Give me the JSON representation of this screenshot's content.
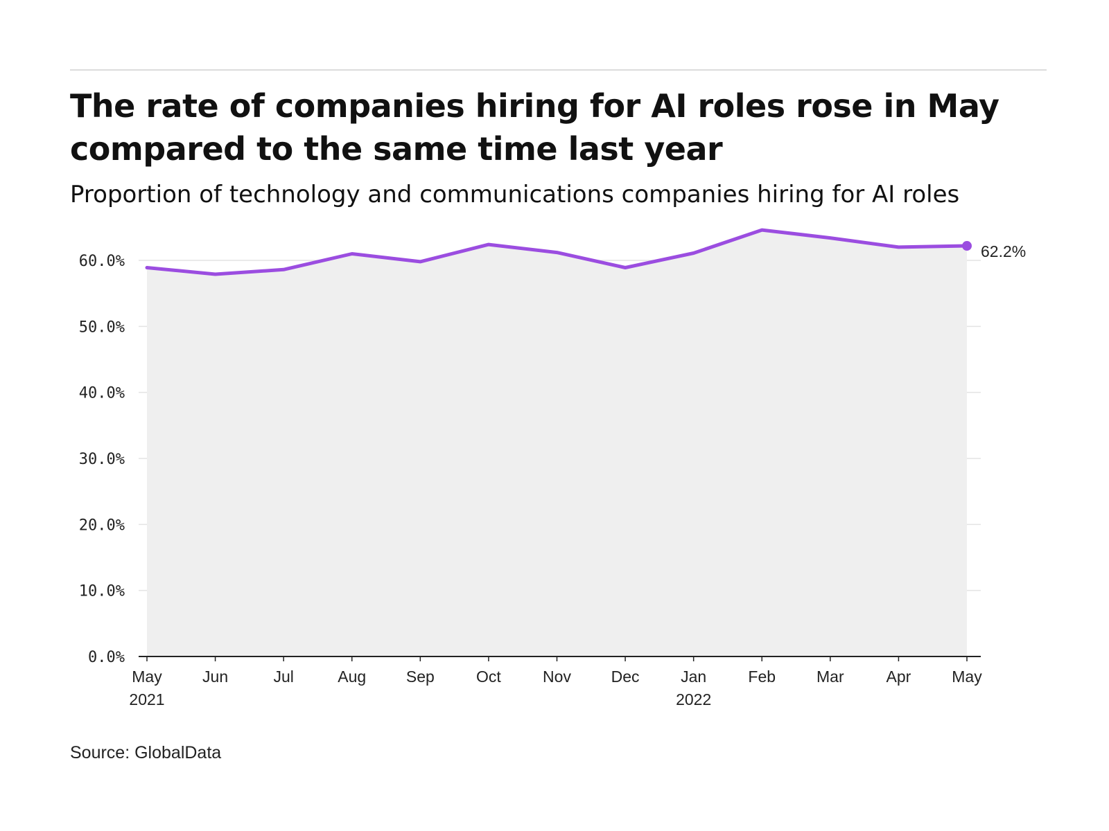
{
  "title": "The rate of companies hiring for AI roles rose in May compared to the same time last year",
  "subtitle": "Proportion of technology and communications companies hiring for AI roles",
  "source": "Source: GlobalData",
  "colors": {
    "line": "#9b4de0",
    "area": "#efefef",
    "grid": "#e3e3e3",
    "axis": "#222222"
  },
  "chart_data": {
    "type": "line",
    "categories": [
      "May 2021",
      "Jun 2021",
      "Jul 2021",
      "Aug 2021",
      "Sep 2021",
      "Oct 2021",
      "Nov 2021",
      "Dec 2021",
      "Jan 2022",
      "Feb 2022",
      "Mar 2022",
      "Apr 2022",
      "May 2022"
    ],
    "x_tick_labels": [
      [
        "May",
        "2021"
      ],
      [
        "Jun"
      ],
      [
        "Jul"
      ],
      [
        "Aug"
      ],
      [
        "Sep"
      ],
      [
        "Oct"
      ],
      [
        "Nov"
      ],
      [
        "Dec"
      ],
      [
        "Jan",
        "2022"
      ],
      [
        "Feb"
      ],
      [
        "Mar"
      ],
      [
        "Apr"
      ],
      [
        "May"
      ]
    ],
    "series": [
      {
        "values": [
          58.9,
          57.9,
          58.6,
          61.0,
          59.8,
          62.4,
          61.2,
          58.9,
          61.1,
          64.6,
          63.4,
          62.0,
          62.2
        ]
      }
    ],
    "ylim": [
      0,
      60
    ],
    "y_ticks": [
      "0.0%",
      "10.0%",
      "20.0%",
      "30.0%",
      "40.0%",
      "50.0%",
      "60.0%"
    ],
    "end_label": "62.2%",
    "area_fill": true,
    "grid": true
  }
}
